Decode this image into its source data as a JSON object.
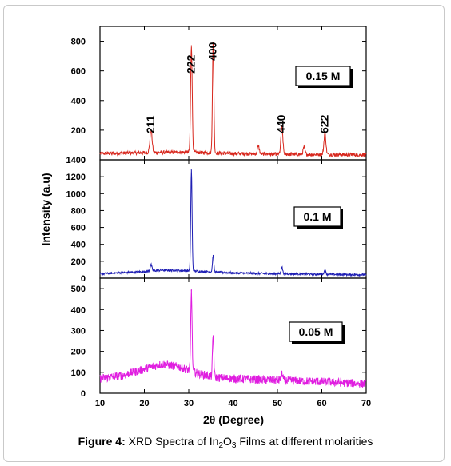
{
  "caption": {
    "label": "Figure 4:",
    "text_a": " XRD Spectra of In",
    "sub1": "2",
    "text_b": "O",
    "sub2": "3",
    "text_c": " Films at different molarities"
  },
  "chart_data": {
    "type": "line",
    "title": "",
    "xlabel": "2θ   (Degree)",
    "ylabel": "Intensity (a.u)",
    "x_ticks": [
      10,
      20,
      30,
      40,
      50,
      60,
      70
    ],
    "xlim": [
      10,
      70
    ],
    "grid": false,
    "panels": [
      {
        "name": "0.15 M",
        "color": "#d8281e",
        "ylim": [
          0,
          900
        ],
        "y_ticks": [
          0,
          200,
          400,
          600,
          800
        ],
        "noise": 12,
        "baseline": [
          [
            10,
            42
          ],
          [
            20,
            48
          ],
          [
            30,
            52
          ],
          [
            40,
            42
          ],
          [
            50,
            38
          ],
          [
            70,
            34
          ]
        ],
        "peaks": [
          {
            "x": 21.5,
            "y": 195,
            "w": 0.25,
            "label": "211"
          },
          {
            "x": 30.6,
            "y": 770,
            "w": 0.18,
            "label": "222"
          },
          {
            "x": 35.5,
            "y": 790,
            "w": 0.16,
            "label": "400"
          },
          {
            "x": 45.7,
            "y": 95,
            "w": 0.2,
            "label": ""
          },
          {
            "x": 51.0,
            "y": 220,
            "w": 0.22,
            "label": "440"
          },
          {
            "x": 56.0,
            "y": 85,
            "w": 0.2,
            "label": ""
          },
          {
            "x": 60.7,
            "y": 180,
            "w": 0.22,
            "label": "622"
          }
        ]
      },
      {
        "name": "0.1 M",
        "color": "#1f1fb4",
        "ylim": [
          0,
          1400
        ],
        "y_ticks": [
          0,
          200,
          400,
          600,
          800,
          1000,
          1200,
          1400
        ],
        "noise": 12,
        "baseline": [
          [
            10,
            52
          ],
          [
            18,
            72
          ],
          [
            24,
            95
          ],
          [
            30,
            88
          ],
          [
            40,
            62
          ],
          [
            50,
            52
          ],
          [
            70,
            40
          ]
        ],
        "peaks": [
          {
            "x": 21.5,
            "y": 160,
            "w": 0.2,
            "label": ""
          },
          {
            "x": 30.6,
            "y": 1280,
            "w": 0.15,
            "label": ""
          },
          {
            "x": 35.5,
            "y": 270,
            "w": 0.15,
            "label": ""
          },
          {
            "x": 51.0,
            "y": 130,
            "w": 0.18,
            "label": ""
          },
          {
            "x": 60.7,
            "y": 90,
            "w": 0.2,
            "label": ""
          }
        ]
      },
      {
        "name": "0.05 M",
        "color": "#e01ee0",
        "ylim": [
          0,
          550
        ],
        "y_ticks": [
          0,
          100,
          200,
          300,
          400,
          500
        ],
        "noise": 20,
        "baseline": [
          [
            10,
            70
          ],
          [
            15,
            85
          ],
          [
            20,
            115
          ],
          [
            24,
            140
          ],
          [
            28,
            125
          ],
          [
            32,
            95
          ],
          [
            36,
            75
          ],
          [
            40,
            70
          ],
          [
            50,
            62
          ],
          [
            60,
            55
          ],
          [
            70,
            45
          ]
        ],
        "peaks": [
          {
            "x": 30.6,
            "y": 490,
            "w": 0.15,
            "label": ""
          },
          {
            "x": 35.5,
            "y": 275,
            "w": 0.15,
            "label": ""
          },
          {
            "x": 51.0,
            "y": 95,
            "w": 0.2,
            "label": ""
          }
        ]
      }
    ]
  }
}
